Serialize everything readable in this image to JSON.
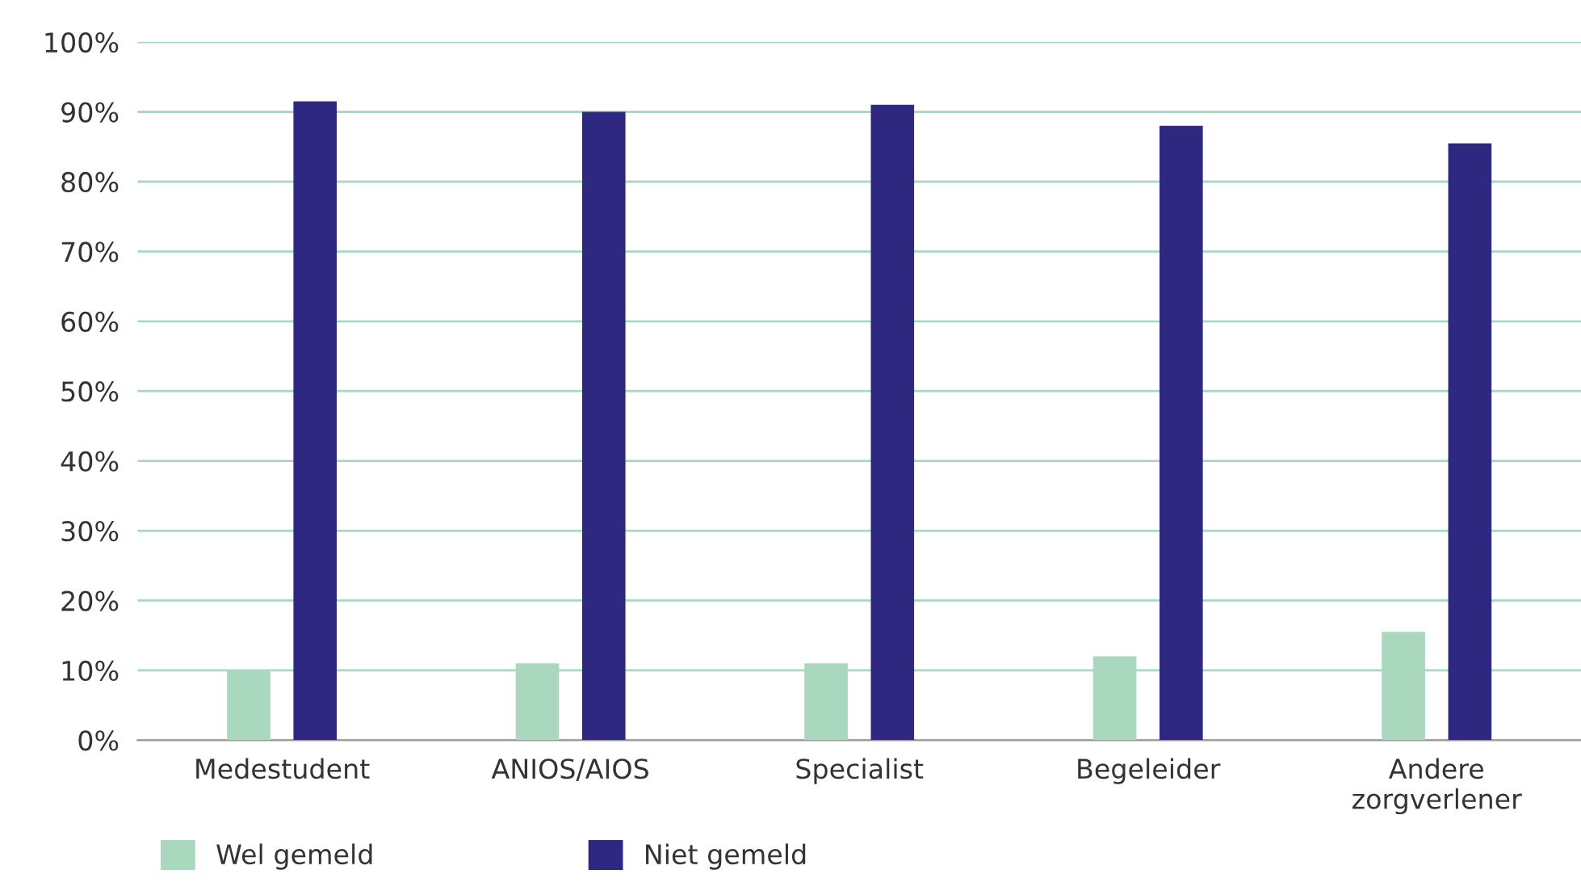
{
  "chart_data": {
    "type": "bar",
    "categories": [
      "Medestudent",
      "ANIOS/AIOS",
      "Specialist",
      "Begeleider",
      "Andere\nzorgverlener"
    ],
    "series": [
      {
        "name": "Wel gemeld",
        "color": "#a9d8bf",
        "values": [
          10,
          11,
          11,
          12,
          15.5
        ]
      },
      {
        "name": "Niet gemeld",
        "color": "#2f2880",
        "values": [
          91.5,
          90,
          91,
          88,
          85.5
        ]
      }
    ],
    "ylim": [
      0,
      100
    ],
    "yticks": [
      {
        "value": 0,
        "label": "0%"
      },
      {
        "value": 10,
        "label": "10%"
      },
      {
        "value": 20,
        "label": "20%"
      },
      {
        "value": 30,
        "label": "30%"
      },
      {
        "value": 40,
        "label": "40%"
      },
      {
        "value": 50,
        "label": "50%"
      },
      {
        "value": 60,
        "label": "60%"
      },
      {
        "value": 70,
        "label": "70%"
      },
      {
        "value": 80,
        "label": "80%"
      },
      {
        "value": 90,
        "label": "90%"
      },
      {
        "value": 100,
        "label": "100%"
      }
    ],
    "grid": "y",
    "legend": "bottom left"
  }
}
